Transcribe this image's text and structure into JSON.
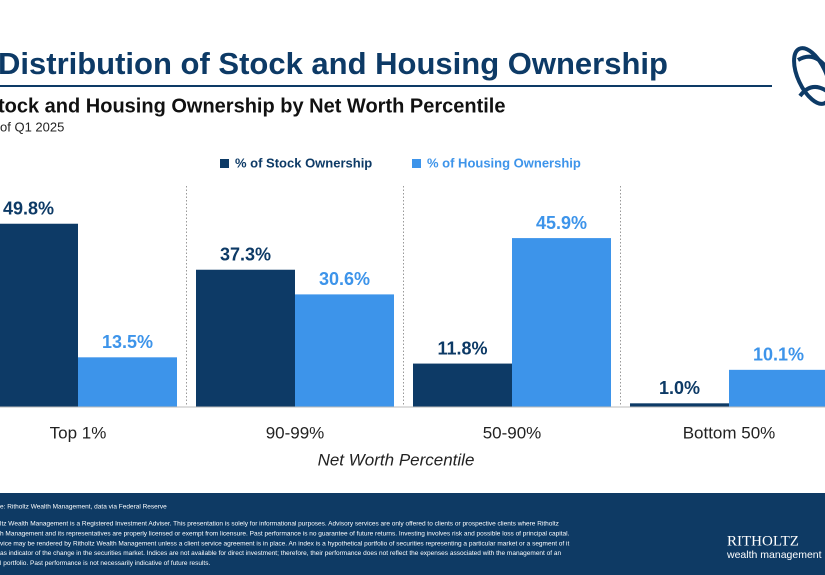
{
  "chart_data": {
    "type": "bar",
    "title": "Distribution of Stock and Housing Ownership",
    "subtitle": "tock and Housing Ownership by Net Worth Percentile",
    "note": "of Q1 2025",
    "x_label": "Net Worth Percentile",
    "categories": [
      "Top 1%",
      "90-99%",
      "50-90%",
      "Bottom 50%"
    ],
    "series": [
      {
        "name": "% of Stock Ownership",
        "color": "#0d3a66",
        "values": [
          49.8,
          37.3,
          11.8,
          1.0
        ],
        "value_labels": [
          "49.8%",
          "37.3%",
          "11.8%",
          "1.0%"
        ]
      },
      {
        "name": "% of Housing Ownership",
        "color": "#3d94ea",
        "values": [
          13.5,
          30.6,
          45.9,
          10.1
        ],
        "value_labels": [
          "13.5%",
          "30.6%",
          "45.9%",
          "10.1%"
        ]
      }
    ]
  },
  "footer": {
    "source": "e: Ritholtz Wealth Management, data via Federal Reserve",
    "disclaimer": [
      "ltz Wealth Management is a Registered Investment Adviser. This presentation is solely for informational purposes. Advisory services are only offered to clients or prospective clients where Ritholtz",
      "h Management and its representatives are properly licensed or exempt from licensure. Past performance is no guarantee of future returns. Investing involves risk and possible loss of principal capital.",
      "vice may be rendered by Ritholtz Wealth Management unless a client service agreement is in place. An index is a hypothetical portfolio of securities representing a particular market or a segment of it",
      "as indicator of the change in the securities market. Indices are not available for direct investment; therefore, their performance does not reflect the expenses associated with the management of an",
      "l portfolio. Past performance is not necessarily indicative of future results."
    ],
    "brand": "RITHOLTZ",
    "brand_sub": "wealth management"
  }
}
